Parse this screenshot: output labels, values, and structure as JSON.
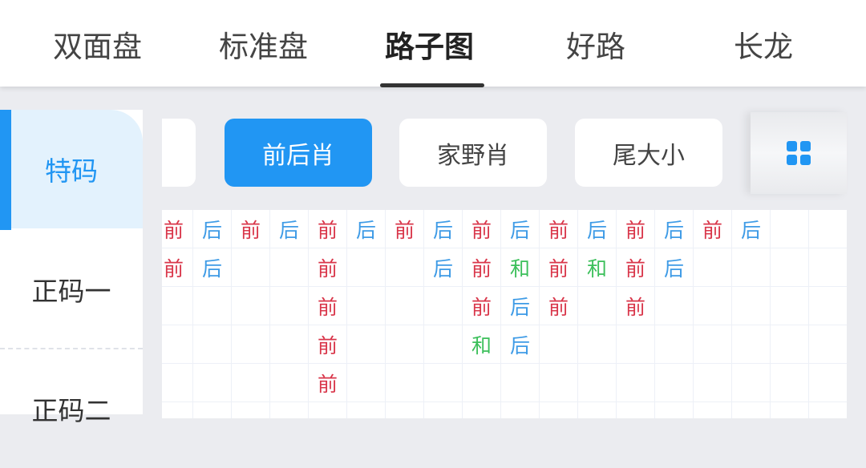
{
  "tabs": [
    {
      "label": "双面盘"
    },
    {
      "label": "标准盘"
    },
    {
      "label": "路子图",
      "active": true
    },
    {
      "label": "好路"
    },
    {
      "label": "长龙"
    }
  ],
  "sidebar": {
    "items": [
      {
        "label": "特码",
        "active": true
      },
      {
        "label": "正码一"
      },
      {
        "label": "正码二"
      }
    ]
  },
  "filters": [
    {
      "label": ""
    },
    {
      "label": "前后肖",
      "active": true
    },
    {
      "label": "家野肖"
    },
    {
      "label": "尾大小"
    }
  ],
  "grid_button_icon": "grid-icon",
  "colors": {
    "accent": "#2196f3",
    "前": "#d9364a",
    "后": "#3e9be6",
    "和": "#3bbf5a"
  },
  "road": {
    "rows": 5,
    "columns": [
      [
        "前",
        "前"
      ],
      [
        "后",
        "后"
      ],
      [
        "前"
      ],
      [
        "后"
      ],
      [
        "前",
        "前",
        "前",
        "前",
        "前"
      ],
      [
        "后"
      ],
      [
        "前"
      ],
      [
        "后",
        "后"
      ],
      [
        "前",
        "前",
        "前",
        "和"
      ],
      [
        "后",
        "和",
        "后",
        "后"
      ],
      [
        "前",
        "前",
        "前"
      ],
      [
        "后",
        "和"
      ],
      [
        "前",
        "前",
        "前"
      ],
      [
        "后",
        "后"
      ],
      [
        "前"
      ],
      [
        "后"
      ],
      [],
      []
    ]
  }
}
